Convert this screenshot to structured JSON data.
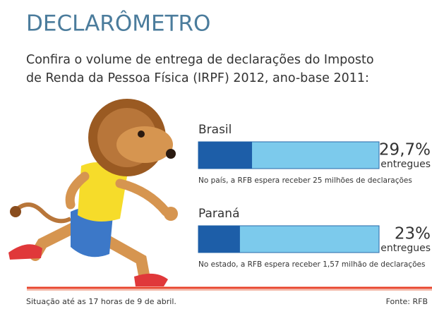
{
  "chart_data": {
    "type": "progress",
    "title": "DECLARÔMETRO",
    "subtitle": [
      "Confira o volume de entrega de declarações  do Imposto",
      "de Renda da Pessoa Física (IRPF) 2012, ano-base 2011:"
    ],
    "categories": [
      "Brasil",
      "Paraná"
    ],
    "values": [
      29.7,
      23
    ],
    "value_labels": [
      "29,7%",
      "23%"
    ],
    "value_captions": [
      "entregues",
      "entregues"
    ],
    "notes": [
      "No país, a RFB espera receber 25 milhões de declarações",
      "No estado, a RFB espera receber 1,57 milhão de declarações"
    ],
    "xlim": [
      0,
      100
    ],
    "color": "#1d5ea8",
    "track_color": "#7ccaec",
    "footnote": "Situação até as 17 horas de 9 de abril.",
    "source": "Fonte: RFB"
  }
}
